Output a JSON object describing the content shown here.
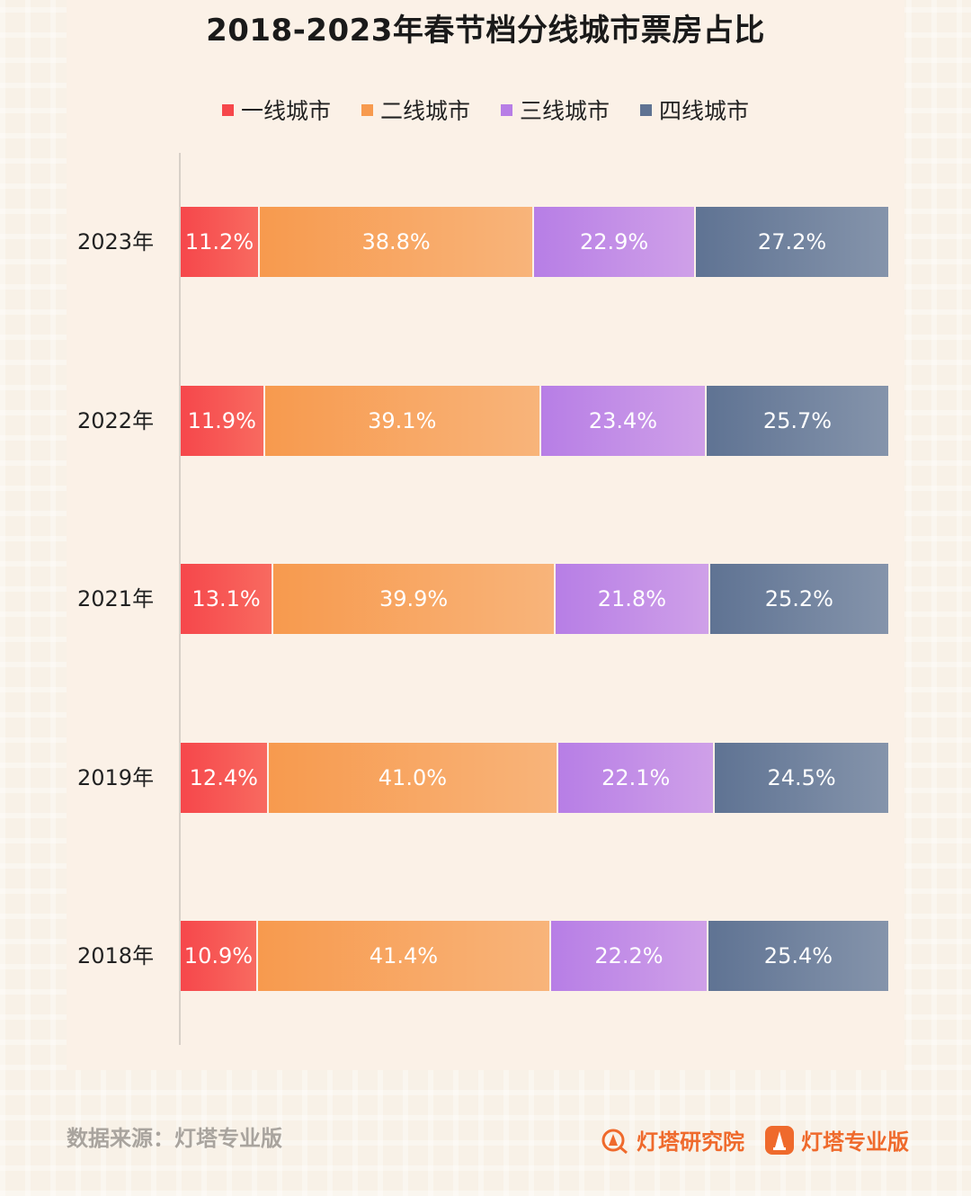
{
  "title": "2018-2023年春节档分线城市票房占比",
  "chart_data": {
    "type": "bar",
    "orientation": "horizontal",
    "stacked": true,
    "normalized_percent": true,
    "title": "2018-2023年春节档分线城市票房占比",
    "categories": [
      "2023年",
      "2022年",
      "2021年",
      "2019年",
      "2018年"
    ],
    "series": [
      {
        "name": "一线城市",
        "color": "#f6474b",
        "values": [
          11.2,
          11.9,
          13.1,
          12.4,
          10.9
        ],
        "labels": [
          "11.2%",
          "11.9%",
          "13.1%",
          "12.4%",
          "10.9%"
        ]
      },
      {
        "name": "二线城市",
        "color": "#f79a4e",
        "values": [
          38.8,
          39.1,
          39.9,
          41.0,
          41.4
        ],
        "labels": [
          "38.8%",
          "39.1%",
          "39.9%",
          "41.0%",
          "41.4%"
        ]
      },
      {
        "name": "三线城市",
        "color": "#b77ee6",
        "values": [
          22.9,
          23.4,
          21.8,
          22.1,
          22.2
        ],
        "labels": [
          "22.9%",
          "23.4%",
          "21.8%",
          "22.1%",
          "22.2%"
        ]
      },
      {
        "name": "四线城市",
        "color": "#5f7393",
        "values": [
          27.2,
          25.7,
          25.2,
          24.5,
          25.4
        ],
        "labels": [
          "27.2%",
          "25.7%",
          "25.2%",
          "24.5%",
          "25.4%"
        ]
      }
    ],
    "xlim": [
      0,
      100
    ],
    "legend": "top-center"
  },
  "footer": {
    "source": "数据来源：灯塔专业版",
    "brand1": "灯塔研究院",
    "brand2": "灯塔专业版"
  }
}
